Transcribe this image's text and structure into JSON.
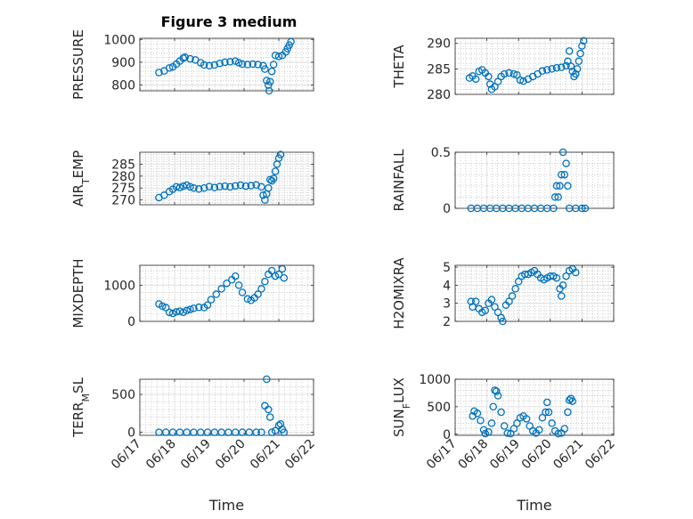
{
  "figure": {
    "title": "Figure 3 medium"
  },
  "colors": {
    "marker": "#0072bd",
    "axes": "#262626",
    "grid": "#d9d9d9",
    "minor_grid": "#b0b0b0"
  },
  "chart_data": [
    {
      "type": "scatter",
      "ylabel": "PRESSURE",
      "title": "Figure 3 medium",
      "ylim": [
        775,
        1005
      ],
      "yticks": [
        800,
        900,
        1000
      ],
      "yticklabels": [
        "800",
        "900",
        "1000"
      ],
      "xlim": [
        0,
        5
      ],
      "xticks": [
        0,
        1,
        2,
        3,
        4,
        5
      ],
      "grid": true,
      "minor_grid": true,
      "points": [
        [
          0.55,
          855
        ],
        [
          0.7,
          862
        ],
        [
          0.85,
          875
        ],
        [
          0.95,
          880
        ],
        [
          1.05,
          892
        ],
        [
          1.15,
          905
        ],
        [
          1.25,
          918
        ],
        [
          1.3,
          922
        ],
        [
          1.45,
          915
        ],
        [
          1.6,
          910
        ],
        [
          1.75,
          898
        ],
        [
          1.85,
          888
        ],
        [
          2.0,
          885
        ],
        [
          2.15,
          888
        ],
        [
          2.3,
          895
        ],
        [
          2.45,
          900
        ],
        [
          2.6,
          902
        ],
        [
          2.75,
          905
        ],
        [
          2.85,
          898
        ],
        [
          2.95,
          892
        ],
        [
          3.1,
          890
        ],
        [
          3.25,
          892
        ],
        [
          3.4,
          890
        ],
        [
          3.55,
          885
        ],
        [
          3.6,
          870
        ],
        [
          3.65,
          820
        ],
        [
          3.7,
          800
        ],
        [
          3.72,
          775
        ],
        [
          3.75,
          815
        ],
        [
          3.8,
          860
        ],
        [
          3.85,
          890
        ],
        [
          3.9,
          930
        ],
        [
          4.0,
          925
        ],
        [
          4.1,
          930
        ],
        [
          4.2,
          945
        ],
        [
          4.25,
          960
        ],
        [
          4.3,
          975
        ],
        [
          4.35,
          990
        ]
      ]
    },
    {
      "type": "scatter",
      "ylabel": "THETA",
      "ylim": [
        280,
        291
      ],
      "yticks": [
        280,
        285,
        290
      ],
      "yticklabels": [
        "280",
        "285",
        "290"
      ],
      "xlim": [
        0,
        5
      ],
      "xticks": [
        0,
        1,
        2,
        3,
        4,
        5
      ],
      "grid": true,
      "minor_grid": true,
      "points": [
        [
          0.45,
          283.2
        ],
        [
          0.55,
          283.6
        ],
        [
          0.65,
          283.0
        ],
        [
          0.75,
          284.5
        ],
        [
          0.85,
          284.8
        ],
        [
          0.95,
          284.2
        ],
        [
          1.05,
          283.5
        ],
        [
          1.1,
          282.0
        ],
        [
          1.15,
          281.0
        ],
        [
          1.25,
          281.5
        ],
        [
          1.35,
          282.5
        ],
        [
          1.45,
          283.5
        ],
        [
          1.55,
          284.0
        ],
        [
          1.7,
          284.2
        ],
        [
          1.85,
          284.0
        ],
        [
          1.95,
          283.8
        ],
        [
          2.05,
          282.8
        ],
        [
          2.15,
          282.6
        ],
        [
          2.3,
          283.0
        ],
        [
          2.45,
          283.5
        ],
        [
          2.6,
          284.0
        ],
        [
          2.75,
          284.6
        ],
        [
          2.9,
          284.8
        ],
        [
          3.05,
          285.0
        ],
        [
          3.2,
          285.2
        ],
        [
          3.35,
          285.3
        ],
        [
          3.5,
          285.6
        ],
        [
          3.55,
          286.5
        ],
        [
          3.6,
          288.5
        ],
        [
          3.65,
          285.5
        ],
        [
          3.7,
          284.5
        ],
        [
          3.75,
          283.5
        ],
        [
          3.8,
          284.0
        ],
        [
          3.85,
          285.0
        ],
        [
          3.9,
          286.5
        ],
        [
          3.95,
          288.0
        ],
        [
          4.0,
          289.5
        ],
        [
          4.05,
          290.5
        ]
      ]
    },
    {
      "type": "scatter",
      "ylabel": "AIR_TEMP",
      "ylim": [
        268,
        290
      ],
      "yticks": [
        270,
        275,
        280,
        285
      ],
      "yticklabels": [
        "270",
        "275",
        "280",
        "285"
      ],
      "xlim": [
        0,
        5
      ],
      "xticks": [
        0,
        1,
        2,
        3,
        4,
        5
      ],
      "grid": true,
      "minor_grid": true,
      "points": [
        [
          0.55,
          271.0
        ],
        [
          0.7,
          272.0
        ],
        [
          0.85,
          273.5
        ],
        [
          0.95,
          274.5
        ],
        [
          1.05,
          275.5
        ],
        [
          1.15,
          275.2
        ],
        [
          1.25,
          275.8
        ],
        [
          1.35,
          276.2
        ],
        [
          1.45,
          275.5
        ],
        [
          1.55,
          275.0
        ],
        [
          1.7,
          274.6
        ],
        [
          1.85,
          275.0
        ],
        [
          2.0,
          275.6
        ],
        [
          2.15,
          275.2
        ],
        [
          2.3,
          275.6
        ],
        [
          2.45,
          275.8
        ],
        [
          2.6,
          275.5
        ],
        [
          2.75,
          275.9
        ],
        [
          2.9,
          276.2
        ],
        [
          3.05,
          275.8
        ],
        [
          3.2,
          276.0
        ],
        [
          3.35,
          276.3
        ],
        [
          3.5,
          275.5
        ],
        [
          3.55,
          272.0
        ],
        [
          3.6,
          270.0
        ],
        [
          3.65,
          272.5
        ],
        [
          3.7,
          275.0
        ],
        [
          3.75,
          278.5
        ],
        [
          3.8,
          278.0
        ],
        [
          3.85,
          279.0
        ],
        [
          3.9,
          282.0
        ],
        [
          3.95,
          285.0
        ],
        [
          4.0,
          287.5
        ],
        [
          4.05,
          289.0
        ]
      ]
    },
    {
      "type": "scatter",
      "ylabel": "RAINFALL",
      "ylim": [
        0,
        0.5
      ],
      "yticks": [
        0,
        0.5
      ],
      "yticklabels": [
        "0",
        "0.5"
      ],
      "xlim": [
        0,
        5
      ],
      "xticks": [
        0,
        1,
        2,
        3,
        4,
        5
      ],
      "grid": true,
      "minor_grid": true,
      "points": [
        [
          0.5,
          0
        ],
        [
          0.7,
          0
        ],
        [
          0.9,
          0
        ],
        [
          1.1,
          0
        ],
        [
          1.3,
          0
        ],
        [
          1.5,
          0
        ],
        [
          1.7,
          0
        ],
        [
          1.9,
          0
        ],
        [
          2.1,
          0
        ],
        [
          2.3,
          0
        ],
        [
          2.5,
          0
        ],
        [
          2.7,
          0
        ],
        [
          2.9,
          0
        ],
        [
          3.1,
          0
        ],
        [
          3.15,
          0.1
        ],
        [
          3.2,
          0.2
        ],
        [
          3.25,
          0.1
        ],
        [
          3.3,
          0.2
        ],
        [
          3.35,
          0.3
        ],
        [
          3.4,
          0.5
        ],
        [
          3.45,
          0.3
        ],
        [
          3.5,
          0.4
        ],
        [
          3.55,
          0.2
        ],
        [
          3.6,
          0
        ],
        [
          3.8,
          0
        ],
        [
          4.0,
          0
        ],
        [
          4.1,
          0
        ]
      ]
    },
    {
      "type": "scatter",
      "ylabel": "MIXDEPTH",
      "ylim": [
        0,
        1550
      ],
      "yticks": [
        0,
        1000
      ],
      "yticklabels": [
        "0",
        "1000"
      ],
      "xlim": [
        0,
        5
      ],
      "xticks": [
        0,
        1,
        2,
        3,
        4,
        5
      ],
      "grid": true,
      "minor_grid": true,
      "points": [
        [
          0.55,
          480
        ],
        [
          0.65,
          420
        ],
        [
          0.75,
          380
        ],
        [
          0.85,
          250
        ],
        [
          0.95,
          220
        ],
        [
          1.05,
          260
        ],
        [
          1.15,
          280
        ],
        [
          1.25,
          250
        ],
        [
          1.35,
          300
        ],
        [
          1.45,
          330
        ],
        [
          1.55,
          360
        ],
        [
          1.7,
          390
        ],
        [
          1.85,
          380
        ],
        [
          1.95,
          450
        ],
        [
          2.05,
          600
        ],
        [
          2.2,
          750
        ],
        [
          2.35,
          900
        ],
        [
          2.5,
          1050
        ],
        [
          2.65,
          1150
        ],
        [
          2.75,
          1250
        ],
        [
          2.85,
          1000
        ],
        [
          2.95,
          800
        ],
        [
          3.1,
          620
        ],
        [
          3.2,
          580
        ],
        [
          3.3,
          650
        ],
        [
          3.4,
          750
        ],
        [
          3.5,
          900
        ],
        [
          3.6,
          1100
        ],
        [
          3.7,
          1300
        ],
        [
          3.8,
          1400
        ],
        [
          3.9,
          1250
        ],
        [
          4.0,
          1300
        ],
        [
          4.1,
          1450
        ],
        [
          4.15,
          1200
        ]
      ]
    },
    {
      "type": "scatter",
      "ylabel": "H2OMIXRA",
      "ylim": [
        2,
        5.1
      ],
      "yticks": [
        2,
        3,
        4,
        5
      ],
      "yticklabels": [
        "2",
        "3",
        "4",
        "5"
      ],
      "xlim": [
        0,
        5
      ],
      "xticks": [
        0,
        1,
        2,
        3,
        4,
        5
      ],
      "grid": true,
      "minor_grid": true,
      "points": [
        [
          0.5,
          3.1
        ],
        [
          0.55,
          2.8
        ],
        [
          0.65,
          3.1
        ],
        [
          0.75,
          2.7
        ],
        [
          0.85,
          2.5
        ],
        [
          0.95,
          2.6
        ],
        [
          1.05,
          3.0
        ],
        [
          1.15,
          3.2
        ],
        [
          1.25,
          2.8
        ],
        [
          1.35,
          2.5
        ],
        [
          1.45,
          2.2
        ],
        [
          1.5,
          2.0
        ],
        [
          1.6,
          2.9
        ],
        [
          1.7,
          3.1
        ],
        [
          1.8,
          3.4
        ],
        [
          1.9,
          3.8
        ],
        [
          2.0,
          4.2
        ],
        [
          2.1,
          4.5
        ],
        [
          2.2,
          4.6
        ],
        [
          2.3,
          4.6
        ],
        [
          2.4,
          4.7
        ],
        [
          2.5,
          4.8
        ],
        [
          2.6,
          4.6
        ],
        [
          2.7,
          4.4
        ],
        [
          2.8,
          4.3
        ],
        [
          2.9,
          4.4
        ],
        [
          3.0,
          4.5
        ],
        [
          3.1,
          4.5
        ],
        [
          3.2,
          4.4
        ],
        [
          3.3,
          3.8
        ],
        [
          3.35,
          3.4
        ],
        [
          3.4,
          4.0
        ],
        [
          3.5,
          4.5
        ],
        [
          3.6,
          4.8
        ],
        [
          3.7,
          4.9
        ],
        [
          3.8,
          4.7
        ]
      ]
    },
    {
      "type": "scatter",
      "ylabel": "TERR_MSL",
      "ylim": [
        -40,
        700
      ],
      "yticks": [
        0,
        500
      ],
      "yticklabels": [
        "0",
        "500"
      ],
      "xlim": [
        0,
        5
      ],
      "xticks": [
        0,
        1,
        2,
        3,
        4,
        5
      ],
      "xticklabels": [
        "06/17",
        "06/18",
        "06/19",
        "06/20",
        "06/21",
        "06/22"
      ],
      "xlabel": "Time",
      "grid": true,
      "minor_grid": true,
      "points": [
        [
          0.55,
          0
        ],
        [
          0.75,
          0
        ],
        [
          0.95,
          0
        ],
        [
          1.15,
          0
        ],
        [
          1.35,
          0
        ],
        [
          1.55,
          0
        ],
        [
          1.75,
          0
        ],
        [
          1.95,
          0
        ],
        [
          2.15,
          0
        ],
        [
          2.35,
          0
        ],
        [
          2.55,
          0
        ],
        [
          2.75,
          0
        ],
        [
          2.95,
          0
        ],
        [
          3.15,
          0
        ],
        [
          3.35,
          0
        ],
        [
          3.5,
          0
        ],
        [
          3.6,
          350
        ],
        [
          3.65,
          700
        ],
        [
          3.7,
          300
        ],
        [
          3.75,
          200
        ],
        [
          3.8,
          0
        ],
        [
          3.9,
          20
        ],
        [
          4.0,
          90
        ],
        [
          4.05,
          110
        ],
        [
          4.1,
          40
        ],
        [
          4.15,
          0
        ]
      ]
    },
    {
      "type": "scatter",
      "ylabel": "SUN_FLUX",
      "ylim": [
        -20,
        1000
      ],
      "yticks": [
        0,
        500,
        1000
      ],
      "yticklabels": [
        "0",
        "500",
        "1000"
      ],
      "xlim": [
        0,
        5
      ],
      "xticks": [
        0,
        1,
        2,
        3,
        4,
        5
      ],
      "xticklabels": [
        "06/17",
        "06/18",
        "06/19",
        "06/20",
        "06/21",
        "06/22"
      ],
      "xlabel": "Time",
      "grid": true,
      "minor_grid": true,
      "points": [
        [
          0.55,
          330
        ],
        [
          0.6,
          420
        ],
        [
          0.7,
          380
        ],
        [
          0.8,
          250
        ],
        [
          0.9,
          80
        ],
        [
          0.95,
          10
        ],
        [
          1.05,
          40
        ],
        [
          1.15,
          200
        ],
        [
          1.2,
          500
        ],
        [
          1.25,
          800
        ],
        [
          1.3,
          780
        ],
        [
          1.35,
          700
        ],
        [
          1.45,
          400
        ],
        [
          1.55,
          150
        ],
        [
          1.65,
          20
        ],
        [
          1.75,
          10
        ],
        [
          1.85,
          100
        ],
        [
          1.95,
          200
        ],
        [
          2.05,
          300
        ],
        [
          2.15,
          330
        ],
        [
          2.25,
          280
        ],
        [
          2.35,
          150
        ],
        [
          2.45,
          60
        ],
        [
          2.55,
          20
        ],
        [
          2.65,
          80
        ],
        [
          2.75,
          300
        ],
        [
          2.85,
          400
        ],
        [
          2.9,
          580
        ],
        [
          2.95,
          400
        ],
        [
          3.05,
          200
        ],
        [
          3.15,
          60
        ],
        [
          3.25,
          10
        ],
        [
          3.35,
          20
        ],
        [
          3.45,
          100
        ],
        [
          3.55,
          400
        ],
        [
          3.6,
          620
        ],
        [
          3.65,
          650
        ],
        [
          3.7,
          600
        ]
      ]
    }
  ]
}
